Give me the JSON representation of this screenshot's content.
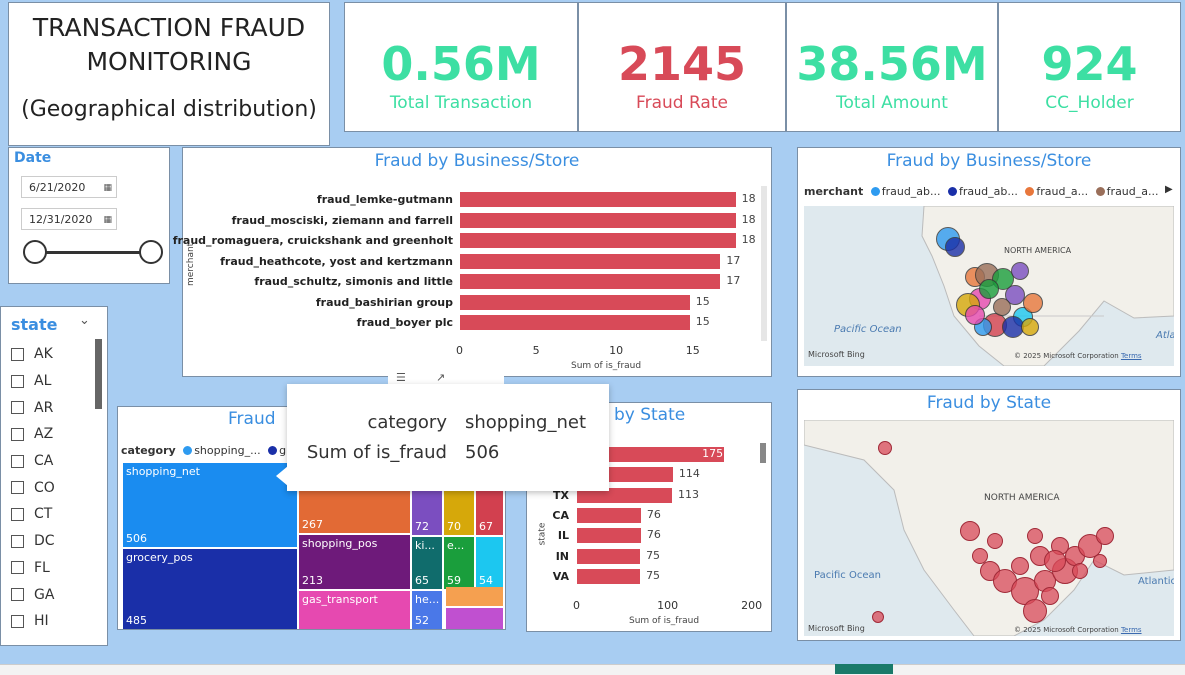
{
  "title": {
    "line1": "TRANSACTION FRAUD",
    "line2": "MONITORING",
    "line3": "(Geographical distribution)"
  },
  "kpis": [
    {
      "value": "0.56M",
      "label": "Total Transaction",
      "color": "#3ddfa3"
    },
    {
      "value": "2145",
      "label": "Fraud Rate",
      "color": "#d84a58"
    },
    {
      "value": "38.56M",
      "label": "Total Amount",
      "color": "#3ddfa3"
    },
    {
      "value": "924",
      "label": "CC_Holder",
      "color": "#3ddfa3"
    }
  ],
  "date_filter": {
    "label": "Date",
    "start": "6/21/2020",
    "end": "12/31/2020"
  },
  "state_filter": {
    "label": "state",
    "items": [
      "AK",
      "AL",
      "AR",
      "AZ",
      "CA",
      "CO",
      "CT",
      "DC",
      "FL",
      "GA",
      "HI"
    ]
  },
  "merchant_chart": {
    "title": "Fraud by Business/Store",
    "ylabel": "merchant",
    "xlabel": "Sum of is_fraud",
    "ticks": [
      "0",
      "5",
      "10",
      "15"
    ],
    "chart_data": {
      "type": "bar",
      "categories": [
        "fraud_lemke-gutmann",
        "fraud_mosciski, ziemann and farrell",
        "fraud_romaguera, cruickshank and greenholt",
        "fraud_heathcote, yost and kertzmann",
        "fraud_schultz, simonis and little",
        "fraud_bashirian group",
        "fraud_boyer plc"
      ],
      "values": [
        18,
        18,
        18,
        17,
        17,
        15,
        15
      ],
      "xlim": [
        0,
        19
      ]
    }
  },
  "merchant_map": {
    "title": "Fraud by Business/Store",
    "legend_label": "merchant",
    "legend_items": [
      {
        "name": "fraud_ab...",
        "color": "#2e9bf0"
      },
      {
        "name": "fraud_ab...",
        "color": "#1a2fa8"
      },
      {
        "name": "fraud_a...",
        "color": "#e8773c"
      },
      {
        "name": "fraud_a...",
        "color": "#9a6f5a"
      }
    ],
    "labels": {
      "continent": "NORTH AMERICA",
      "ocean": "Pacific Ocean",
      "ocean2": "Atla",
      "bing": "Microsoft Bing",
      "copyright": "© 2025 Microsoft Corporation",
      "terms": "Terms"
    }
  },
  "category_chart": {
    "title": "Fraud",
    "legend_label": "category",
    "legend_items": [
      {
        "name": "shopping_...",
        "color": "#2e9bf0"
      },
      {
        "name": "gro",
        "color": "#1a2fa8"
      }
    ],
    "tiles": [
      {
        "name": "shopping_net",
        "value": "506",
        "color": "#1a8cf0"
      },
      {
        "name": "grocery_pos",
        "value": "485",
        "color": "#1a2fa8"
      },
      {
        "name": "",
        "value": "267",
        "color": "#e26a35"
      },
      {
        "name": "shopping_pos",
        "value": "213",
        "color": "#6e1a7a"
      },
      {
        "name": "gas_transport",
        "value": "",
        "color": "#e649b0"
      },
      {
        "name": "",
        "value": "72",
        "color": "#7b4ec0"
      },
      {
        "name": "",
        "value": "70",
        "color": "#d6a80a"
      },
      {
        "name": "",
        "value": "67",
        "color": "#d2404f"
      },
      {
        "name": "ki...",
        "value": "65",
        "color": "#106c6c"
      },
      {
        "name": "e...",
        "value": "59",
        "color": "#1a9e3c"
      },
      {
        "name": "",
        "value": "54",
        "color": "#1cc7f0"
      },
      {
        "name": "he...",
        "value": "52",
        "color": "#4a78e8"
      },
      {
        "name": "",
        "value": "",
        "color": "#f5a050"
      },
      {
        "name": "",
        "value": "",
        "color": "#c050d0"
      }
    ]
  },
  "tooltip": {
    "key1": "category",
    "val1": "shopping_net",
    "key2": "Sum of is_fraud",
    "val2": "506"
  },
  "state_chart": {
    "title": "ud by State",
    "ylabel": "state",
    "xlabel": "Sum of is_fraud",
    "ticks": [
      "0",
      "100",
      "200"
    ],
    "chart_data": {
      "type": "bar",
      "categories": [
        "",
        "",
        "TX",
        "CA",
        "IL",
        "IN",
        "VA"
      ],
      "values": [
        175,
        114,
        113,
        76,
        76,
        75,
        75
      ],
      "xlim": [
        0,
        220
      ]
    }
  },
  "state_map": {
    "title": "Fraud by State",
    "labels": {
      "continent": "NORTH AMERICA",
      "ocean": "Pacific Ocean",
      "ocean2": "Atlantic",
      "bing": "Microsoft Bing",
      "copyright": "© 2025 Microsoft Corporation",
      "terms": "Terms"
    }
  }
}
